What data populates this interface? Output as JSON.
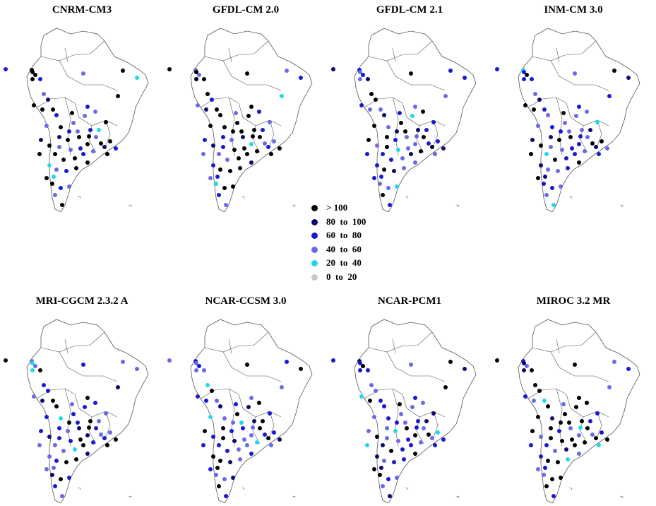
{
  "colors": {
    "gt100": "#000000",
    "80to100": "#0b0b6e",
    "60to80": "#1919d2",
    "40to60": "#6a6ae8",
    "20to40": "#22d8e8",
    "0to20": "#c8c8c8",
    "coast": "#555555"
  },
  "legend": [
    {
      "label": "> 100",
      "color_key": "gt100"
    },
    {
      "label": "80  to  100",
      "color_key": "80to100"
    },
    {
      "label": "60  to  80",
      "color_key": "60to80"
    },
    {
      "label": "40  to  60",
      "color_key": "40to60"
    },
    {
      "label": "20  to  40",
      "color_key": "20to40"
    },
    {
      "label": "0  to  20",
      "color_key": "0to20"
    }
  ],
  "panels": [
    {
      "title": "CNRM-CM3",
      "dominant": "gt100"
    },
    {
      "title": "GFDL-CM 2.0",
      "dominant": "gt100"
    },
    {
      "title": "GFDL-CM 2.1",
      "dominant": "60to80"
    },
    {
      "title": "INM-CM 3.0",
      "dominant": "60to80"
    },
    {
      "title": "MRI-CGCM 2.3.2 A",
      "dominant": "60to80"
    },
    {
      "title": "NCAR-CCSM 3.0",
      "dominant": "60to80"
    },
    {
      "title": "NCAR-PCM1",
      "dominant": "60to80"
    },
    {
      "title": "MIROC 3.2 MR",
      "dominant": "gt100"
    }
  ]
}
